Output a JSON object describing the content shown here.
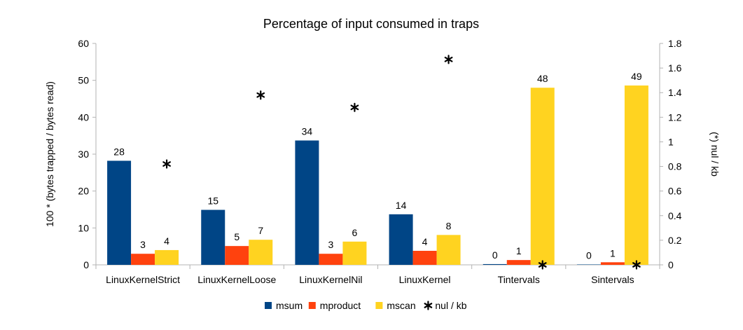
{
  "chart_data": {
    "type": "bar",
    "title": "Percentage of input consumed in traps",
    "ylabel": "100 * (bytes trapped / bytes read)",
    "y2label": "(*) nul / kb",
    "categories": [
      "LinuxKernelStrict",
      "LinuxKernelLoose",
      "LinuxKernelNil",
      "LinuxKernel",
      "Tintervals",
      "Sintervals"
    ],
    "ylim": [
      0,
      60
    ],
    "y2lim": [
      0,
      1.8
    ],
    "yticks": [
      "0",
      "10",
      "20",
      "30",
      "40",
      "50",
      "60"
    ],
    "y2ticks": [
      "0",
      "0.2",
      "0.4",
      "0.6",
      "0.8",
      "1",
      "1.2",
      "1.4",
      "1.6",
      "1.8"
    ],
    "series": [
      {
        "name": "msum",
        "color": "#004586",
        "values": [
          28.2,
          14.9,
          33.7,
          13.7,
          0.2,
          0.1
        ],
        "labels": [
          "28",
          "15",
          "34",
          "14",
          "0",
          "0"
        ]
      },
      {
        "name": "mproduct",
        "color": "#ff420e",
        "values": [
          3.0,
          5.1,
          3.0,
          3.8,
          1.3,
          0.7
        ],
        "labels": [
          "3",
          "5",
          "3",
          "4",
          "1",
          "1"
        ]
      },
      {
        "name": "mscan",
        "color": "#ffd320",
        "values": [
          4.0,
          6.8,
          6.3,
          8.1,
          48.0,
          48.6
        ],
        "labels": [
          "4",
          "7",
          "6",
          "8",
          "48",
          "49"
        ]
      }
    ],
    "scatter_series": {
      "name": "nul / kb",
      "marker": "*",
      "axis": "secondary",
      "values": [
        0.82,
        1.38,
        1.28,
        1.67,
        0.0,
        0.0
      ]
    },
    "grid": false,
    "legend": "bottom"
  }
}
